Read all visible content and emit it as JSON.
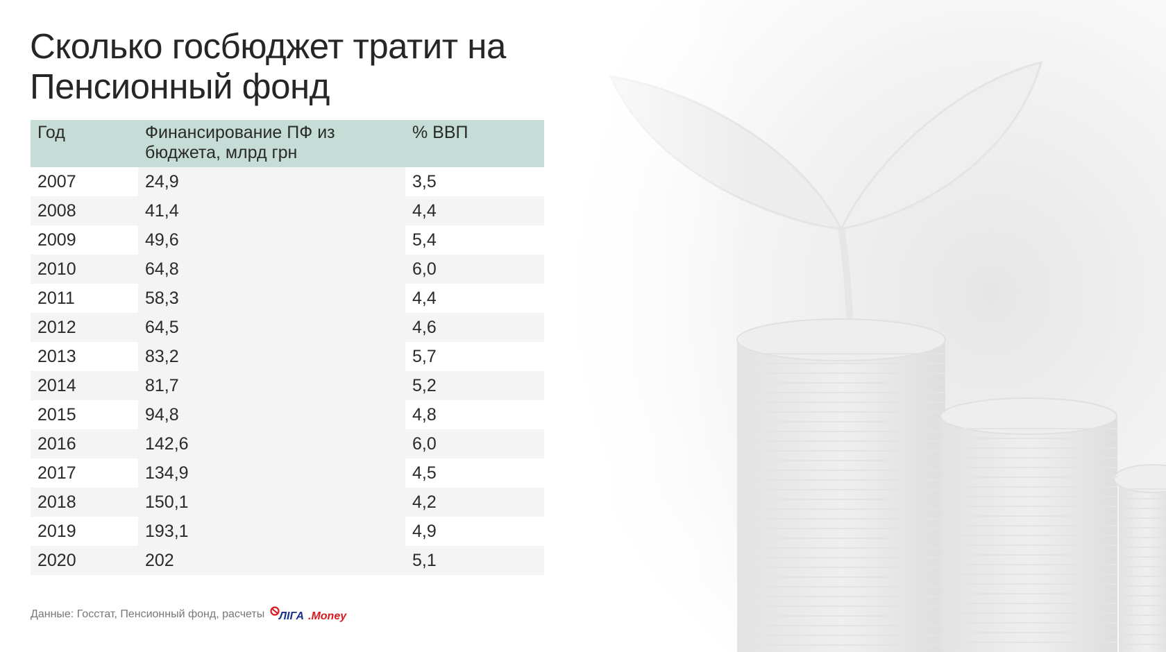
{
  "title": "Сколько госбюджет тратит на Пенсионный фонд",
  "table": {
    "headers": [
      "Год",
      "Финансирование ПФ из бюджета, млрд грн",
      "% ВВП"
    ],
    "rows": [
      [
        "2007",
        "24,9",
        "3,5"
      ],
      [
        "2008",
        "41,4",
        "4,4"
      ],
      [
        "2009",
        "49,6",
        "5,4"
      ],
      [
        "2010",
        "64,8",
        "6,0"
      ],
      [
        "2011",
        "58,3",
        "4,4"
      ],
      [
        "2012",
        "64,5",
        "4,6"
      ],
      [
        "2013",
        "83,2",
        "5,7"
      ],
      [
        "2014",
        "81,7",
        "5,2"
      ],
      [
        "2015",
        "94,8",
        "4,8"
      ],
      [
        "2016",
        "142,6",
        "6,0"
      ],
      [
        "2017",
        "134,9",
        "4,5"
      ],
      [
        "2018",
        "150,1",
        "4,2"
      ],
      [
        "2019",
        "193,1",
        "4,9"
      ],
      [
        "2020",
        "202",
        "5,1"
      ]
    ]
  },
  "footer": {
    "source": "Данные: Госстат, Пенсионный фонд, расчеты",
    "logo_text": "ЛIГА.Money"
  },
  "colors": {
    "header_bg": "#c5ddd6",
    "stripe_bg": "#f4f4f4",
    "logo_red": "#d71920",
    "logo_blue": "#1a2e8a"
  },
  "background_icons": [
    "coin-stack-icon",
    "sprout-icon"
  ]
}
